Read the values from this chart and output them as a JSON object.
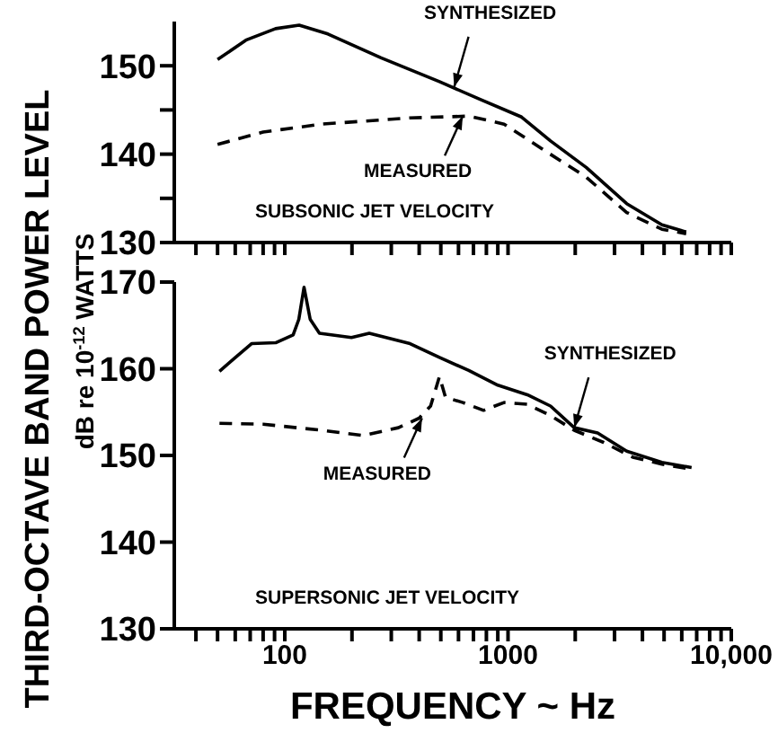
{
  "chart_data": [
    {
      "type": "line",
      "ylabel": "THIRD-OCTAVE BAND POWER LEVEL\ndB re 10$^{-12}$ WATTS",
      "log": "x",
      "xlim": [
        32,
        10000
      ],
      "xticks": [
        40,
        50,
        60,
        70,
        80,
        90,
        100,
        200,
        300,
        400,
        500,
        600,
        700,
        800,
        900,
        1000,
        2000,
        3000,
        4000,
        5000,
        6000,
        7000,
        8000,
        9000,
        10000
      ],
      "ylim": [
        130,
        155
      ],
      "yticks": [
        130,
        {
          "value": 135,
          "label": null
        },
        140,
        {
          "value": 145,
          "label": null
        },
        150
      ],
      "tick_labels": "y",
      "marker": "none",
      "series": [
        {
          "color": "#000000",
          "line_style": "solid",
          "x": [
            50,
            67,
            91,
            116,
            156,
            270,
            493,
            750,
            1150,
            1550,
            2240,
            3400,
            4890,
            6280
          ],
          "values": [
            150.7,
            152.9,
            154.2,
            154.6,
            153.6,
            150.9,
            148.2,
            146.2,
            144.2,
            141.5,
            138.5,
            134.4,
            132.0,
            131.2
          ]
        },
        {
          "color": "#000000",
          "line_style": "dashed",
          "x": [
            50,
            80,
            147,
            364,
            667,
            960,
            1460,
            2240,
            3400,
            4890,
            6280
          ],
          "values": [
            141.1,
            142.5,
            143.4,
            144.1,
            144.3,
            143.4,
            140.4,
            137.4,
            133.4,
            131.5,
            131.0
          ]
        }
      ],
      "annotations": [
        {
          "text": "SYNTHESIZED",
          "x": 574,
          "y": 147.6
        },
        {
          "text": "MEASURED",
          "x": 627,
          "y": 144.3
        },
        "SUBSONIC JET VELOCITY"
      ]
    },
    {
      "type": "line",
      "xlabel": "FREQUENCY ~ Hz",
      "log": "x",
      "xlim": [
        32,
        10000
      ],
      "xticks": [
        {
          "value": 40,
          "label": null
        },
        {
          "value": 50,
          "label": null
        },
        {
          "value": 60,
          "label": null
        },
        {
          "value": 70,
          "label": null
        },
        {
          "value": 80,
          "label": null
        },
        {
          "value": 90,
          "label": null
        },
        {
          "value": 100,
          "label": "100"
        },
        {
          "value": 200,
          "label": null
        },
        {
          "value": 300,
          "label": null
        },
        {
          "value": 400,
          "label": null
        },
        {
          "value": 500,
          "label": null
        },
        {
          "value": 600,
          "label": null
        },
        {
          "value": 700,
          "label": null
        },
        {
          "value": 800,
          "label": null
        },
        {
          "value": 900,
          "label": null
        },
        {
          "value": 1000,
          "label": "1000"
        },
        {
          "value": 2000,
          "label": null
        },
        {
          "value": 3000,
          "label": null
        },
        {
          "value": 4000,
          "label": null
        },
        {
          "value": 5000,
          "label": null
        },
        {
          "value": 6000,
          "label": null
        },
        {
          "value": 7000,
          "label": null
        },
        {
          "value": 8000,
          "label": null
        },
        {
          "value": 9000,
          "label": null
        },
        {
          "value": 10000,
          "label": "10,000"
        }
      ],
      "ylim": [
        130,
        170
      ],
      "yticks": [
        130,
        140,
        150,
        160,
        170
      ],
      "marker": "none",
      "series": [
        {
          "color": "#000000",
          "line_style": "solid",
          "x": [
            51,
            59.5,
            71,
            91,
            109,
            115.6,
            122,
            130,
            143,
            199,
            239,
            364,
            493,
            667,
            900,
            1220,
            1550,
            1980,
            2520,
            3400,
            4890,
            6640
          ],
          "values": [
            159.7,
            161.2,
            162.9,
            163.0,
            163.9,
            165.7,
            169.4,
            165.7,
            164.1,
            163.6,
            164.1,
            162.9,
            161.3,
            159.8,
            158.1,
            157.0,
            155.7,
            153.2,
            152.6,
            150.5,
            149.2,
            148.6
          ]
        },
        {
          "color": "#000000",
          "line_style": "dashed",
          "x": [
            51,
            80,
            147,
            225,
            323,
            400,
            450,
            493,
            525,
            628,
            777,
            960,
            1220,
            1550,
            1980,
            2680,
            3620,
            4890,
            6640
          ],
          "values": [
            153.7,
            153.6,
            152.9,
            152.3,
            153.2,
            154.3,
            155.7,
            159.1,
            156.7,
            156.1,
            155.2,
            156.1,
            155.9,
            154.6,
            152.9,
            151.5,
            149.8,
            149.0,
            148.4
          ]
        }
      ],
      "annotations": [
        {
          "text": "SYNTHESIZED",
          "x": 1980,
          "y": 153.2
        },
        {
          "text": "MEASURED",
          "x": 412,
          "y": 154.3
        },
        "SUPERSONIC JET VELOCITY"
      ]
    }
  ]
}
